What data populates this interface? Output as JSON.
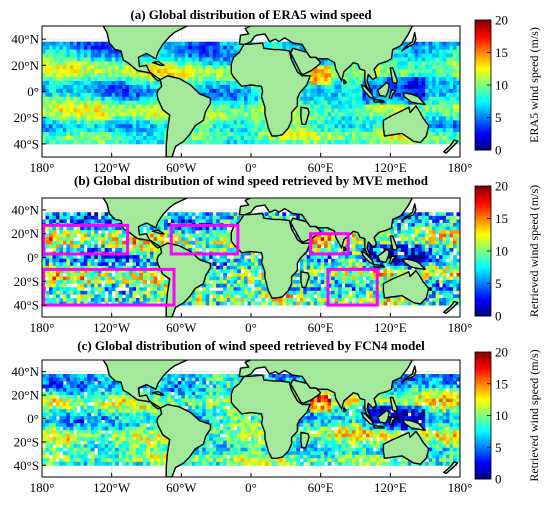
{
  "chart_data": [
    {
      "type": "heatmap",
      "title": "(a) Global distribution of ERA5 wind speed",
      "x_ticks": [
        "180°",
        "120°W",
        "60°W",
        "0°",
        "60°E",
        "120°E",
        "180°"
      ],
      "y_ticks": [
        "40°N",
        "20°N",
        "0°",
        "20°S",
        "40°S"
      ],
      "xlim": [
        -180,
        180
      ],
      "ylim": [
        -50,
        50
      ],
      "data_lat_range": [
        -38,
        38
      ],
      "colorbar": {
        "label": "ERA5 wind speed (m/s)",
        "ticks": [
          "0",
          "5",
          "10",
          "15",
          "20"
        ],
        "range": [
          0,
          20
        ],
        "colormap": "jet"
      },
      "ocean_bg": "#ffffff",
      "land_color": "#a3e89b",
      "highlight_boxes": []
    },
    {
      "type": "heatmap",
      "title": "(b) Global distribution of wind speed retrieved by MVE method",
      "x_ticks": [
        "180°",
        "120°W",
        "60°W",
        "0°",
        "60°E",
        "120°E",
        "180°"
      ],
      "y_ticks": [
        "40°N",
        "20°N",
        "0°",
        "20°S",
        "40°S"
      ],
      "xlim": [
        -180,
        180
      ],
      "ylim": [
        -50,
        50
      ],
      "data_lat_range": [
        -38,
        38
      ],
      "colorbar": {
        "label": "Retrieved wind speed (m/s)",
        "ticks": [
          "0",
          "5",
          "10",
          "15",
          "20"
        ],
        "range": [
          0,
          20
        ],
        "colormap": "jet"
      },
      "ocean_bg": "#ffffff",
      "land_color": "#a3e89b",
      "highlight_color": "#ff00ff",
      "highlight_boxes": [
        {
          "lon": [
            -180,
            -105
          ],
          "lat": [
            3,
            27
          ]
        },
        {
          "lon": [
            -70,
            -10
          ],
          "lat": [
            3,
            27
          ]
        },
        {
          "lon": [
            -180,
            -65
          ],
          "lat": [
            -40,
            -10
          ]
        },
        {
          "lon": [
            50,
            85
          ],
          "lat": [
            3,
            20
          ]
        },
        {
          "lon": [
            65,
            110
          ],
          "lat": [
            -40,
            -10
          ]
        }
      ]
    },
    {
      "type": "heatmap",
      "title": "(c) Global distribution of wind speed retrieved by FCN4 model",
      "x_ticks": [
        "180°",
        "120°W",
        "60°W",
        "0°",
        "60°E",
        "120°E",
        "180°"
      ],
      "y_ticks": [
        "40°N",
        "20°N",
        "0°",
        "20°S",
        "40°S"
      ],
      "xlim": [
        -180,
        180
      ],
      "ylim": [
        -50,
        50
      ],
      "data_lat_range": [
        -38,
        38
      ],
      "colorbar": {
        "label": "Retrieved wind speed (m/s)",
        "ticks": [
          "0",
          "5",
          "10",
          "15",
          "20"
        ],
        "range": [
          0,
          20
        ],
        "colormap": "jet"
      },
      "ocean_bg": "#ffffff",
      "land_color": "#a3e89b",
      "highlight_boxes": []
    }
  ]
}
